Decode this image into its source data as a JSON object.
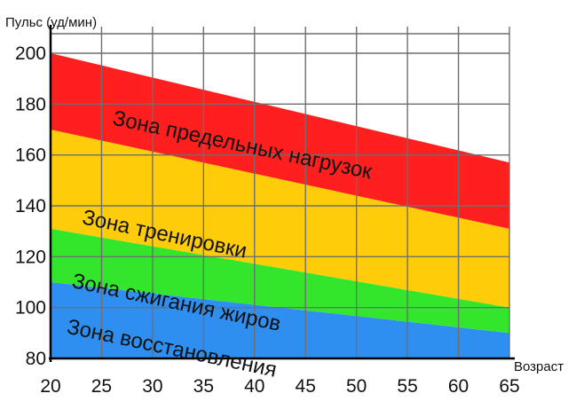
{
  "chart_data": {
    "type": "area",
    "ylabel": "Пульс (уд/мин)",
    "xlabel": "Возраст",
    "xlim": [
      20,
      65
    ],
    "ylim": [
      80,
      200
    ],
    "x_ticks": [
      20,
      25,
      30,
      35,
      40,
      45,
      50,
      55,
      60,
      65
    ],
    "y_ticks": [
      80,
      100,
      120,
      140,
      160,
      180,
      200
    ],
    "grid": true,
    "x": [
      20,
      65
    ],
    "boundaries": [
      {
        "lower": [
          80,
          80
        ],
        "upper": [
          110,
          90
        ],
        "color": "#2f8ff0"
      },
      {
        "lower": [
          110,
          90
        ],
        "upper": [
          131,
          100
        ],
        "color": "#33e62c"
      },
      {
        "lower": [
          131,
          100
        ],
        "upper": [
          170,
          131
        ],
        "color": "#ffcc0a"
      },
      {
        "lower": [
          170,
          131
        ],
        "upper": [
          200,
          157
        ],
        "color": "#ff1f1f"
      }
    ],
    "series": [
      {
        "name": "Зона восстановления",
        "label_at": [
          21.5,
          90
        ]
      },
      {
        "name": "Зона сжигания жиров",
        "label_at": [
          22,
          108
        ]
      },
      {
        "name": "Зона тренировки",
        "label_at": [
          23,
          133
        ]
      },
      {
        "name": "Зона предельных нагрузок",
        "label_at": [
          26,
          172
        ]
      }
    ]
  }
}
